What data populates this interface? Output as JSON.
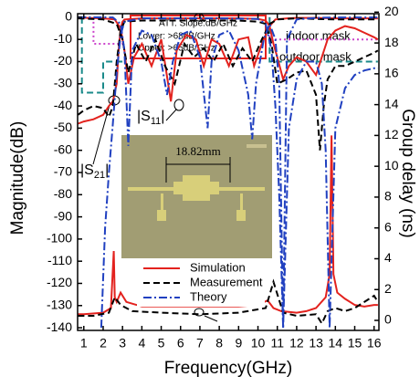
{
  "chart_data": {
    "type": "line",
    "xlabel": "Frequency(GHz)",
    "ylabel": "Magnitude(dB)",
    "y2label": "Group delay (ns)",
    "xlim": [
      0.68,
      16.25
    ],
    "ylim": [
      -141.2,
      1.6
    ],
    "y2lim": [
      -0.65,
      19.9
    ],
    "xticks": [
      1,
      2,
      3,
      4,
      5,
      6,
      7,
      8,
      9,
      10,
      11,
      12,
      13,
      14,
      15,
      16
    ],
    "yticks": [
      0,
      -10,
      -20,
      -30,
      -40,
      -50,
      -60,
      -70,
      -80,
      -90,
      -100,
      -110,
      -120,
      -130,
      -140
    ],
    "y2ticks": [
      0,
      2,
      4,
      6,
      8,
      10,
      12,
      14,
      16,
      18,
      20
    ],
    "series": [
      {
        "name": "Simulation",
        "color": "#e3221e",
        "dash": "solid",
        "curves": [
          {
            "x": [
              0.7,
              1,
              1.5,
              2,
              2.3,
              2.5,
              2.7,
              2.8,
              2.9,
              3.0,
              3.1,
              4,
              5,
              6,
              7,
              8,
              9,
              10,
              10.4,
              10.6,
              10.8,
              11.0,
              11.3,
              11.6,
              12,
              12.5,
              13,
              13.3,
              13.6,
              14,
              14.5,
              15,
              15.5,
              16,
              16.2
            ],
            "values": [
              -48,
              -47,
              -46,
              -44,
              -40,
              -38,
              -30,
              -15,
              -5,
              -2,
              -1,
              -0.5,
              -0.5,
              -0.5,
              -0.5,
              -0.5,
              -0.5,
              -0.8,
              -1.5,
              -4,
              -12,
              -18,
              -28,
              -22,
              -18,
              -20,
              -26,
              -18,
              -10,
              -6,
              -4,
              -5,
              -7,
              -9,
              -10
            ]
          },
          {
            "x": [
              0.7,
              2,
              2.6,
              2.9,
              3.1,
              3.3,
              3.6,
              4.0,
              4.5,
              5.0,
              5.5,
              5.8,
              6.3,
              6.8,
              7.2,
              7.6,
              8.0,
              8.5,
              9.0,
              9.5,
              9.8,
              10.2,
              10.6,
              10.9,
              11.5,
              12,
              13,
              14,
              15,
              16.2
            ],
            "values": [
              -0.2,
              -0.5,
              -1,
              -5,
              -15,
              -30,
              -18,
              -12,
              -22,
              -10,
              -38,
              -15,
              -8,
              -10,
              -22,
              -10,
              -12,
              -22,
              -10,
              -9,
              -22,
              -12,
              -4,
              -1,
              -0.5,
              -0.3,
              -0.3,
              -0.5,
              -0.5,
              -0.5
            ]
          },
          {
            "axis": "y2",
            "x": [
              0.7,
              1,
              2,
              2.4,
              2.55,
              2.6,
              2.7,
              2.9,
              3.2,
              4,
              5,
              6,
              7,
              8,
              9,
              10,
              10.5,
              10.8,
              11.2,
              12,
              12.5,
              13,
              13.5,
              13.7,
              13.8,
              13.9,
              14.1,
              14.5,
              15,
              15.5,
              16,
              16.2
            ],
            "values": [
              0.4,
              0.4,
              0.5,
              0.8,
              4.5,
              1.5,
              1.2,
              1.8,
              1.2,
              0.9,
              0.9,
              0.9,
              0.9,
              0.9,
              0.9,
              1.0,
              1.3,
              0.8,
              0.6,
              0.5,
              0.6,
              0.8,
              1.5,
              3,
              12,
              3,
              1.8,
              1.4,
              1.0,
              0.9,
              1.0,
              1.0
            ]
          }
        ]
      },
      {
        "name": "Measurement",
        "color": "#000000",
        "dash": "dashed",
        "curves": [
          {
            "x": [
              0.7,
              1,
              1.5,
              2,
              2.3,
              2.5,
              2.7,
              2.9,
              3.1,
              4,
              5,
              6,
              7,
              8,
              9,
              10,
              10.4,
              10.7,
              11,
              11.5,
              12,
              12.5,
              13,
              13.2,
              13.4,
              13.6,
              14,
              14.5,
              15,
              15.5,
              16,
              16.2
            ],
            "values": [
              -44,
              -42,
              -40,
              -41,
              -45,
              -40,
              -20,
              -6,
              -2,
              -1.5,
              -1.5,
              -1.5,
              -1.5,
              -1.5,
              -1.5,
              -2,
              -3,
              -12,
              -30,
              -28,
              -25,
              -24,
              -35,
              -60,
              -40,
              -28,
              -22,
              -22,
              -20,
              -18,
              -16,
              -15
            ]
          },
          {
            "x": [
              0.7,
              2,
              2.7,
              3.0,
              3.3,
              3.7,
              4.2,
              4.7,
              5.2,
              5.7,
              6.2,
              6.7,
              7.2,
              7.7,
              8.2,
              8.7,
              9.2,
              9.7,
              10.2,
              10.6,
              11,
              12,
              13,
              14,
              15,
              16.2
            ],
            "values": [
              -0.5,
              -1,
              -3,
              -10,
              -25,
              -12,
              -20,
              -10,
              -22,
              -30,
              -12,
              -18,
              -14,
              -20,
              -12,
              -22,
              -14,
              -20,
              -10,
              -3,
              -1,
              -0.5,
              -0.8,
              -1,
              -1,
              -1
            ]
          },
          {
            "axis": "y2",
            "x": [
              0.7,
              1.5,
              2.3,
              2.6,
              2.9,
              3.5,
              5,
              7,
              9,
              10.4,
              10.8,
              11.3,
              12,
              13,
              13.3,
              13.6,
              14,
              14.5,
              15,
              16,
              16.2
            ],
            "values": [
              0.3,
              0.3,
              0.5,
              1.5,
              1.0,
              0.6,
              0.5,
              0.4,
              0.5,
              0.8,
              2.5,
              0.5,
              0.3,
              0.4,
              -0.2,
              0.6,
              0.8,
              0.6,
              0.8,
              1.6,
              1.2
            ]
          }
        ]
      },
      {
        "name": "Theory",
        "color": "#2040c0",
        "dash": "dashdot",
        "curves": [
          {
            "x": [
              1.9,
              2.1,
              2.3,
              2.5,
              2.7,
              2.9,
              3.1,
              4,
              6,
              8,
              10,
              10.4,
              10.7,
              10.9,
              11.1,
              11.3,
              11.6,
              12,
              12.5,
              13,
              13.3,
              13.5,
              13.7,
              14,
              14.5,
              15,
              15.5,
              16,
              16.2
            ],
            "values": [
              -140,
              -95,
              -70,
              -48,
              -25,
              -8,
              -2,
              -0.5,
              -0.5,
              -0.5,
              -0.8,
              -3,
              -15,
              -40,
              -80,
              -140,
              -50,
              -28,
              -20,
              -20,
              -30,
              -60,
              -140,
              -50,
              -32,
              -26,
              -24,
              -23,
              -23
            ]
          },
          {
            "x": [
              0.7,
              2.5,
              2.9,
              3.1,
              3.3,
              3.5,
              4,
              4.5,
              5,
              5.3,
              5.6,
              6,
              6.5,
              7,
              7.4,
              7.6,
              8,
              8.5,
              9,
              9.5,
              9.7,
              9.9,
              10.3,
              10.6,
              10.9,
              11.1,
              11.3,
              11.5,
              12,
              13,
              14,
              15,
              16.2
            ],
            "values": [
              0,
              -0.1,
              -3,
              -15,
              -58,
              -15,
              -6,
              -8,
              -20,
              -35,
              -20,
              -8,
              -6,
              -18,
              -50,
              -20,
              -8,
              -6,
              -15,
              -35,
              -55,
              -30,
              -10,
              -3,
              -10,
              -30,
              -140,
              -10,
              -1,
              -0.3,
              -0.1,
              -0.1,
              -0.1
            ]
          }
        ]
      }
    ],
    "masks": [
      {
        "name": "indoor mask",
        "color": "#cc44cc",
        "dash": "dotted",
        "x": [
          1.5,
          1.5,
          3.1,
          3.2,
          10.6,
          10.6,
          16.2
        ],
        "values": [
          0,
          -12,
          -12,
          null,
          0,
          -10,
          -10
        ]
      },
      {
        "name": "outdoor mask",
        "color": "#1a8a8a",
        "dash": "dashed",
        "x": [
          0.9,
          0.9,
          2.0,
          2.0,
          3.1,
          3.2,
          10.6,
          10.6,
          16.2
        ],
        "values": [
          0,
          -34,
          -34,
          -20,
          -20,
          null,
          0,
          -20,
          -20
        ]
      }
    ],
    "att_box": [
      "ATT. Slope:dB/GHz",
      "Lower: >68dB/GHz",
      "Upper: >65dB/GHz"
    ],
    "annotations": [
      {
        "text": "|S",
        "sub": "21",
        "end": "|"
      },
      {
        "text": "|S",
        "sub": "11",
        "end": "|"
      }
    ],
    "inset_label": "18.82mm"
  }
}
